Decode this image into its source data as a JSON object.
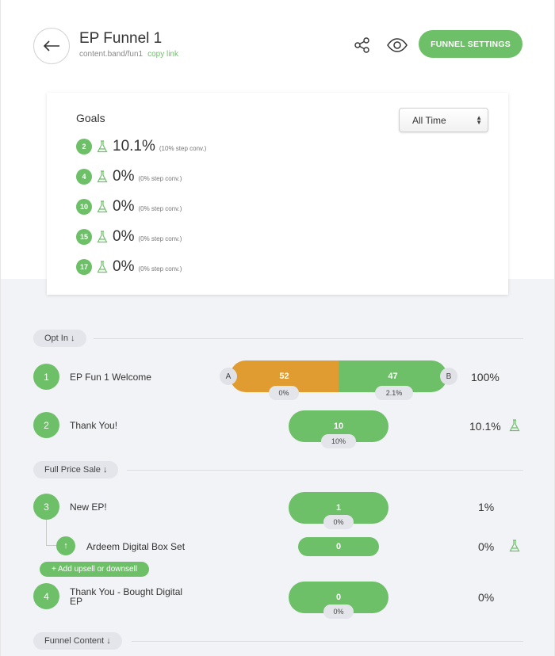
{
  "header": {
    "title": "EP Funnel 1",
    "url": "content.band/fun1",
    "copy_link": "copy link",
    "settings_label": "FUNNEL SETTINGS"
  },
  "goals": {
    "title": "Goals",
    "range": "All Time",
    "items": [
      {
        "step": "2",
        "pct": "10.1%",
        "note": "(10% step conv.)"
      },
      {
        "step": "4",
        "pct": "0%",
        "note": "(0% step conv.)"
      },
      {
        "step": "10",
        "pct": "0%",
        "note": "(0% step conv.)"
      },
      {
        "step": "15",
        "pct": "0%",
        "note": "(0% step conv.)"
      },
      {
        "step": "17",
        "pct": "0%",
        "note": "(0% step conv.)"
      }
    ]
  },
  "sections": {
    "opt_in": "Opt In ↓",
    "full_price": "Full Price Sale ↓",
    "funnel_content": "Funnel Content ↓"
  },
  "steps": {
    "s1": {
      "num": "1",
      "name": "EP Fun 1 Welcome",
      "a_label": "A",
      "b_label": "B",
      "a_value": "52",
      "a_sub": "0%",
      "b_value": "47",
      "b_sub": "2.1%",
      "pct": "100%"
    },
    "s2": {
      "num": "2",
      "name": "Thank You!",
      "value": "10",
      "sub": "10%",
      "pct": "10.1%"
    },
    "s3": {
      "num": "3",
      "name": "New EP!",
      "value": "1",
      "sub": "0%",
      "pct": "1%"
    },
    "upsell": {
      "icon": "↑",
      "name": "Ardeem Digital Box Set",
      "value": "0",
      "pct": "0%"
    },
    "add_upsell": "+ Add upsell or downsell",
    "s4": {
      "num": "4",
      "name": "Thank You - Bought Digital EP",
      "value": "0",
      "sub": "0%",
      "pct": "0%"
    }
  },
  "colors": {
    "accent": "#6dc068",
    "variant_a": "#e09c30",
    "pill": "#e3e5ea"
  }
}
